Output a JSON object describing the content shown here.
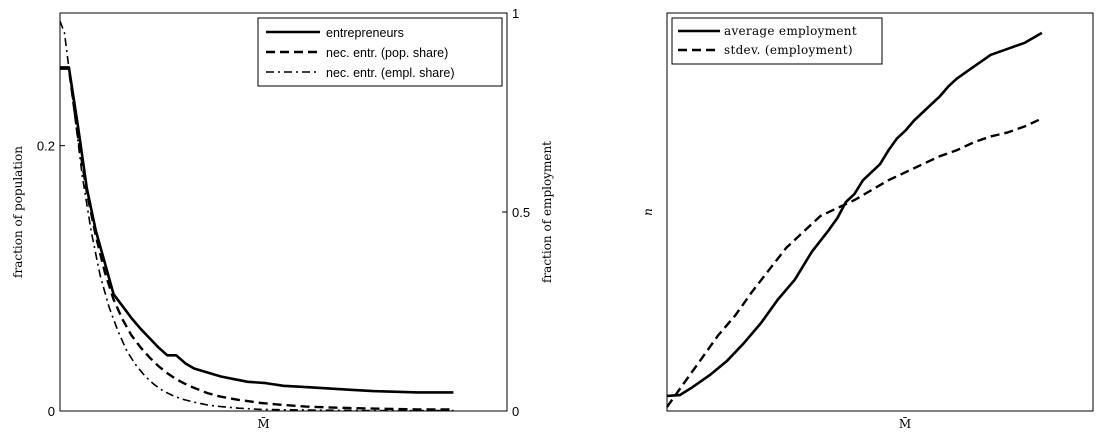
{
  "chart_data": [
    {
      "type": "line",
      "title": "",
      "xlabel": "M̄",
      "ylabel": "fraction of population",
      "y2label": "fraction of employment",
      "ylim": [
        0,
        0.3
      ],
      "y2lim": [
        0,
        1
      ],
      "yticks": [
        {
          "value": 0,
          "label": "0"
        },
        {
          "value": 0.2,
          "label": "0.2"
        }
      ],
      "y2ticks": [
        {
          "value": 0,
          "label": "0"
        },
        {
          "value": 0.5,
          "label": "0.5"
        },
        {
          "value": 1,
          "label": "1"
        }
      ],
      "xlim": [
        0,
        1
      ],
      "grid": false,
      "legend_position": "top-right",
      "series": [
        {
          "name": "entrepreneurs",
          "style": "solid",
          "axis": "left",
          "x": [
            0,
            0.02,
            0.04,
            0.06,
            0.08,
            0.1,
            0.12,
            0.14,
            0.16,
            0.18,
            0.2,
            0.22,
            0.24,
            0.26,
            0.28,
            0.3,
            0.33,
            0.36,
            0.39,
            0.42,
            0.46,
            0.5,
            0.55,
            0.6,
            0.65,
            0.7,
            0.8,
            0.88
          ],
          "y": [
            0.259,
            0.259,
            0.215,
            0.168,
            0.136,
            0.112,
            0.088,
            0.079,
            0.07,
            0.062,
            0.055,
            0.048,
            0.042,
            0.042,
            0.036,
            0.032,
            0.029,
            0.026,
            0.024,
            0.022,
            0.021,
            0.019,
            0.018,
            0.017,
            0.016,
            0.015,
            0.014,
            0.014
          ]
        },
        {
          "name": "nec. entr. (pop. share)",
          "style": "dashed",
          "axis": "right",
          "x": [
            0,
            0.02,
            0.04,
            0.06,
            0.08,
            0.1,
            0.12,
            0.14,
            0.16,
            0.18,
            0.2,
            0.22,
            0.24,
            0.26,
            0.28,
            0.3,
            0.33,
            0.36,
            0.4,
            0.45,
            0.5,
            0.55,
            0.6,
            0.7,
            0.8,
            0.88
          ],
          "y": [
            0.86,
            0.86,
            0.69,
            0.55,
            0.44,
            0.35,
            0.28,
            0.23,
            0.19,
            0.16,
            0.135,
            0.113,
            0.095,
            0.08,
            0.068,
            0.058,
            0.045,
            0.036,
            0.028,
            0.02,
            0.015,
            0.011,
            0.009,
            0.006,
            0.004,
            0.004
          ]
        },
        {
          "name": "nec. entr. (empl. share)",
          "style": "dashdot",
          "axis": "right",
          "x": [
            0,
            0.01,
            0.03,
            0.05,
            0.07,
            0.09,
            0.11,
            0.13,
            0.15,
            0.17,
            0.19,
            0.21,
            0.23,
            0.25,
            0.27,
            0.3,
            0.33,
            0.36,
            0.4,
            0.45,
            0.5,
            0.6,
            0.7,
            0.8,
            0.88
          ],
          "y": [
            0.98,
            0.95,
            0.77,
            0.59,
            0.45,
            0.34,
            0.26,
            0.2,
            0.15,
            0.115,
            0.088,
            0.067,
            0.051,
            0.04,
            0.031,
            0.022,
            0.015,
            0.011,
            0.007,
            0.004,
            0.003,
            0.002,
            0.001,
            0.001,
            0.001
          ]
        }
      ]
    },
    {
      "type": "line",
      "title": "",
      "xlabel": "M̄",
      "ylabel": "n",
      "ylim": [
        0,
        1
      ],
      "xlim": [
        0,
        1
      ],
      "grid": false,
      "legend_position": "top-left",
      "series": [
        {
          "name": "average employment",
          "style": "solid",
          "x": [
            0,
            0.03,
            0.06,
            0.1,
            0.14,
            0.18,
            0.22,
            0.26,
            0.3,
            0.34,
            0.38,
            0.4,
            0.42,
            0.44,
            0.46,
            0.48,
            0.5,
            0.52,
            0.54,
            0.56,
            0.58,
            0.6,
            0.62,
            0.64,
            0.66,
            0.68,
            0.7,
            0.72,
            0.74,
            0.76,
            0.8,
            0.84,
            0.88
          ],
          "y": [
            0.038,
            0.04,
            0.06,
            0.09,
            0.125,
            0.17,
            0.22,
            0.28,
            0.33,
            0.4,
            0.455,
            0.485,
            0.525,
            0.545,
            0.58,
            0.6,
            0.62,
            0.655,
            0.685,
            0.705,
            0.73,
            0.75,
            0.77,
            0.79,
            0.815,
            0.835,
            0.85,
            0.865,
            0.88,
            0.895,
            0.91,
            0.925,
            0.95
          ]
        },
        {
          "name": "stdev. (employment)",
          "style": "dashed",
          "x": [
            0,
            0.04,
            0.08,
            0.12,
            0.16,
            0.2,
            0.24,
            0.28,
            0.32,
            0.36,
            0.4,
            0.44,
            0.48,
            0.52,
            0.56,
            0.6,
            0.64,
            0.68,
            0.72,
            0.76,
            0.8,
            0.84,
            0.88
          ],
          "y": [
            0.01,
            0.07,
            0.13,
            0.19,
            0.24,
            0.3,
            0.355,
            0.41,
            0.45,
            0.49,
            0.51,
            0.53,
            0.555,
            0.58,
            0.6,
            0.62,
            0.64,
            0.655,
            0.675,
            0.69,
            0.7,
            0.715,
            0.735
          ]
        }
      ]
    }
  ]
}
